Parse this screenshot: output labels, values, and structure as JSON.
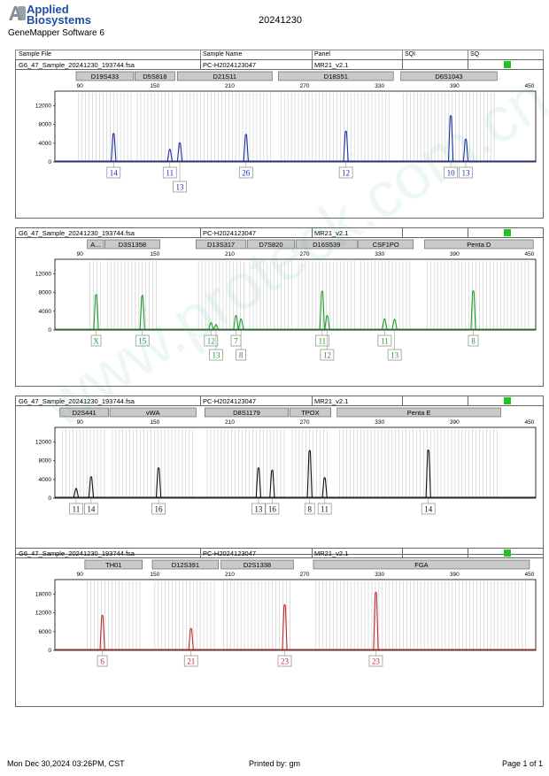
{
  "header": {
    "brand_line1": "Applied",
    "brand_line2": "Biosystems",
    "software": "GeneMapper Software 6",
    "title": "20241230"
  },
  "columns": {
    "sample_file": "Sample File",
    "sample_name": "Sample Name",
    "panel": "Panel",
    "sqi": "SQI",
    "sq": "SQ"
  },
  "footer": {
    "date": "Mon Dec 30,2024 03:26PM, CST",
    "printed_by": "Printed by: gm",
    "page": "Page 1 of 1"
  },
  "watermark": "www.proteck.com.cn",
  "chart_data": [
    {
      "type": "line",
      "color": "#1a2fa0",
      "sample_file": "G6_47_Sample_20241230_193744.fsa",
      "sample_name": "PC-H2024123047",
      "panel": "MR21_v2.1",
      "x_ticks": [
        90,
        150,
        210,
        270,
        330,
        390,
        450
      ],
      "y_ticks": [
        0,
        4000,
        8000,
        12000
      ],
      "ylim": [
        0,
        14000
      ],
      "xlim": [
        70,
        455
      ],
      "loci": [
        {
          "name": "D19S433",
          "x0": 87,
          "x1": 133
        },
        {
          "name": "D5S818",
          "x0": 134,
          "x1": 166
        },
        {
          "name": "D21S11",
          "x0": 168,
          "x1": 244
        },
        {
          "name": "D18S51",
          "x0": 249,
          "x1": 341
        },
        {
          "name": "D6S1043",
          "x0": 347,
          "x1": 424
        }
      ],
      "peaks": [
        {
          "x": 117,
          "h": 6200,
          "label": "14",
          "row": 0
        },
        {
          "x": 162,
          "h": 2800,
          "label": "11",
          "row": 0
        },
        {
          "x": 170,
          "h": 4200,
          "label": "13",
          "row": 1
        },
        {
          "x": 223,
          "h": 6000,
          "label": "26",
          "row": 0
        },
        {
          "x": 303,
          "h": 6700,
          "label": "12",
          "row": 0
        },
        {
          "x": 387,
          "h": 10000,
          "label": "10",
          "row": 0
        },
        {
          "x": 399,
          "h": 5000,
          "label": "13",
          "row": 0
        }
      ]
    },
    {
      "type": "line",
      "color": "#1f9a2a",
      "sample_file": "G6_47_Sample_20241230_193744.fsa",
      "sample_name": "PC-H2024123047",
      "panel": "MR21_v2.1",
      "x_ticks": [
        90,
        150,
        210,
        270,
        330,
        390,
        450
      ],
      "y_ticks": [
        0,
        4000,
        8000,
        12000
      ],
      "ylim": [
        0,
        14000
      ],
      "xlim": [
        70,
        455
      ],
      "loci": [
        {
          "name": "A...",
          "x0": 96,
          "x1": 109
        },
        {
          "name": "D3S1358",
          "x0": 110,
          "x1": 154
        },
        {
          "name": "D13S317",
          "x0": 183,
          "x1": 223
        },
        {
          "name": "D7S820",
          "x0": 224,
          "x1": 262
        },
        {
          "name": "D16S539",
          "x0": 263,
          "x1": 312
        },
        {
          "name": "CSF1PO",
          "x0": 313,
          "x1": 357
        },
        {
          "name": "Penta D",
          "x0": 366,
          "x1": 453
        }
      ],
      "peaks": [
        {
          "x": 103,
          "h": 7700,
          "label": "X",
          "row": 0
        },
        {
          "x": 140,
          "h": 7500,
          "label": "15",
          "row": 0
        },
        {
          "x": 195,
          "h": 1700,
          "label": "12",
          "row": 0
        },
        {
          "x": 199,
          "h": 1300,
          "label": "13",
          "row": 1
        },
        {
          "x": 215,
          "h": 3200,
          "label": "7",
          "row": 0
        },
        {
          "x": 219,
          "h": 2500,
          "label": "8",
          "row": 1
        },
        {
          "x": 284,
          "h": 8400,
          "label": "11",
          "row": 0
        },
        {
          "x": 288,
          "h": 3200,
          "label": "12",
          "row": 1
        },
        {
          "x": 334,
          "h": 2500,
          "label": "11",
          "row": 0
        },
        {
          "x": 342,
          "h": 2400,
          "label": "13",
          "row": 1
        },
        {
          "x": 405,
          "h": 8500,
          "label": "8",
          "row": 0
        }
      ]
    },
    {
      "type": "line",
      "color": "#111111",
      "sample_file": "G6_47_Sample_20241230_193744.fsa",
      "sample_name": "PC-H2024123047",
      "panel": "MR21_v2.1",
      "x_ticks": [
        90,
        150,
        210,
        270,
        330,
        390,
        450
      ],
      "y_ticks": [
        0,
        4000,
        8000,
        12000
      ],
      "ylim": [
        0,
        14000
      ],
      "xlim": [
        70,
        455
      ],
      "loci": [
        {
          "name": "D2S441",
          "x0": 74,
          "x1": 113
        },
        {
          "name": "vWA",
          "x0": 114,
          "x1": 183
        },
        {
          "name": "D8S1179",
          "x0": 190,
          "x1": 257
        },
        {
          "name": "TPOX",
          "x0": 258,
          "x1": 291
        },
        {
          "name": "Penta E",
          "x0": 296,
          "x1": 427
        }
      ],
      "peaks": [
        {
          "x": 87,
          "h": 2200,
          "label": "11",
          "row": 0
        },
        {
          "x": 99,
          "h": 4700,
          "label": "14",
          "row": 0
        },
        {
          "x": 153,
          "h": 6600,
          "label": "16",
          "row": 0
        },
        {
          "x": 233,
          "h": 6600,
          "label": "13",
          "row": 0
        },
        {
          "x": 244,
          "h": 6100,
          "label": "16",
          "row": 0
        },
        {
          "x": 274,
          "h": 10300,
          "label": "8",
          "row": 0
        },
        {
          "x": 286,
          "h": 4500,
          "label": "11",
          "row": 0
        },
        {
          "x": 369,
          "h": 10400,
          "label": "14",
          "row": 0
        }
      ]
    },
    {
      "type": "line",
      "color": "#c8282a",
      "sample_file": "G6_47_Sample_20241230_193744.fsa",
      "sample_name": "PC-H2024123047",
      "panel": "MR21_v2.1",
      "x_ticks": [
        90,
        150,
        210,
        270,
        330,
        390,
        450
      ],
      "y_ticks": [
        0,
        6000,
        12000,
        18000
      ],
      "ylim": [
        0,
        21000
      ],
      "xlim": [
        70,
        455
      ],
      "loci": [
        {
          "name": "TH01",
          "x0": 94,
          "x1": 140
        },
        {
          "name": "D12S391",
          "x0": 148,
          "x1": 201
        },
        {
          "name": "D2S1338",
          "x0": 203,
          "x1": 261
        },
        {
          "name": "FGA",
          "x0": 277,
          "x1": 450
        }
      ],
      "peaks": [
        {
          "x": 108,
          "h": 11400,
          "label": "6",
          "row": 0
        },
        {
          "x": 179,
          "h": 7200,
          "label": "21",
          "row": 0
        },
        {
          "x": 254,
          "h": 14800,
          "label": "23",
          "row": 0
        },
        {
          "x": 327,
          "h": 18800,
          "label": "23",
          "row": 0
        }
      ]
    }
  ]
}
